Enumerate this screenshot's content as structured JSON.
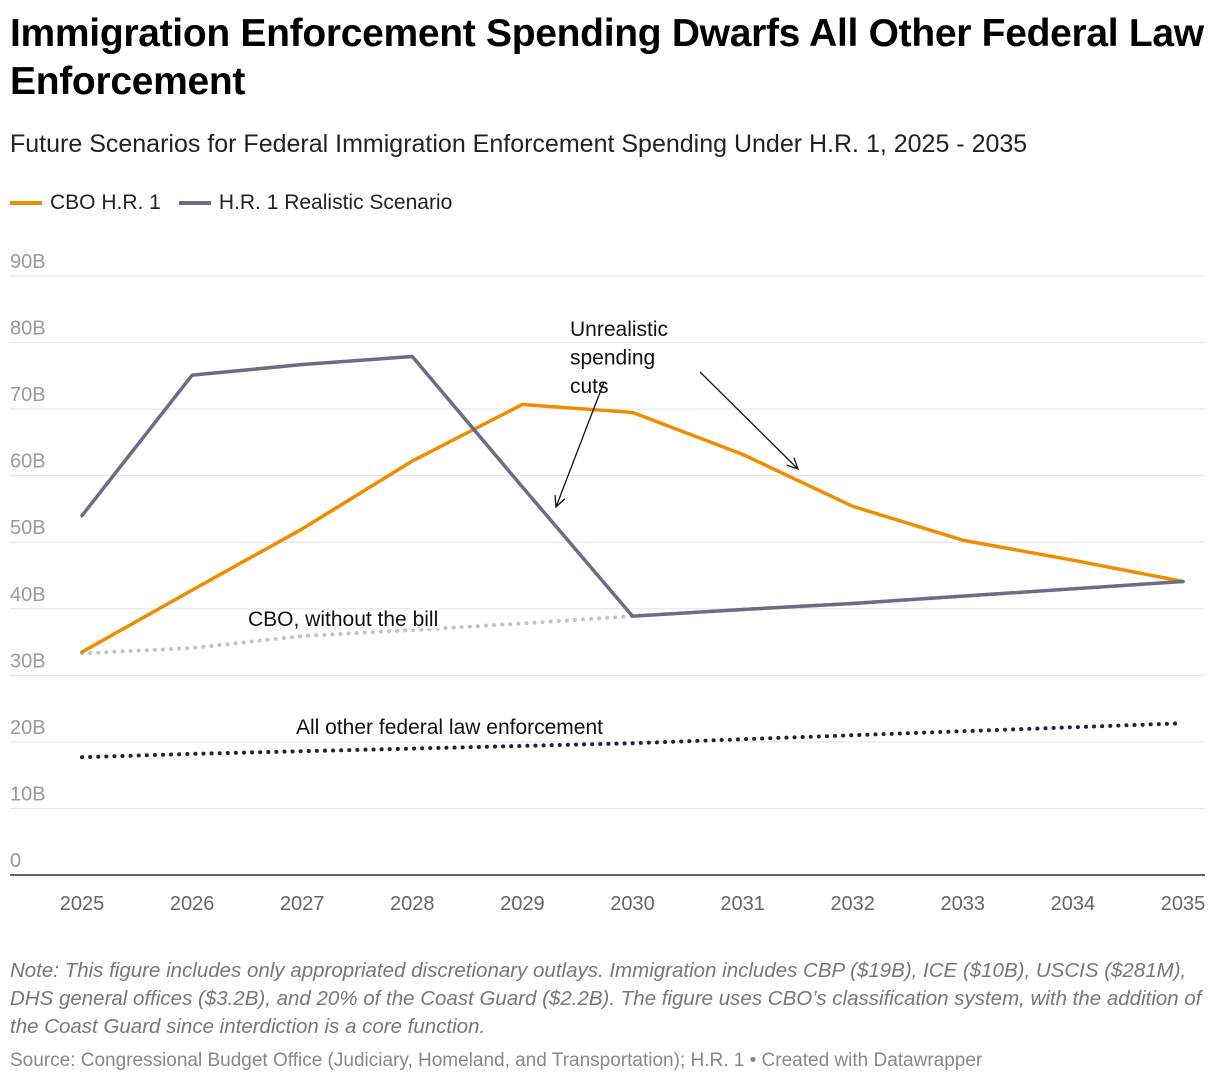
{
  "title": "Immigration Enforcement Spending Dwarfs All Other Federal Law Enforcement",
  "subtitle": "Future Scenarios for Federal Immigration Enforcement Spending Under H.R. 1, 2025 - 2035",
  "note": "Note: This figure includes only appropriated discretionary outlays. Immigration includes CBP ($19B), ICE ($10B), USCIS ($281M), DHS general offices ($3.2B), and 20% of the Coast Guard ($2.2B). The figure uses CBO’s classification system, with the addition of the Coast Guard since interdiction is a core function.",
  "source": "Source: Congressional Budget Office (Judiciary, Homeland, and Transportation); H.R. 1 • Created with Datawrapper",
  "chart_data": {
    "type": "line",
    "x": [
      2025,
      2026,
      2027,
      2028,
      2029,
      2030,
      2031,
      2032,
      2033,
      2034,
      2035
    ],
    "ylim": [
      0,
      90
    ],
    "yticks": [
      0,
      10,
      20,
      30,
      40,
      50,
      60,
      70,
      80,
      90
    ],
    "ytick_labels": [
      "0",
      "10B",
      "20B",
      "30B",
      "40B",
      "50B",
      "60B",
      "70B",
      "80B",
      "90B"
    ],
    "grid": true,
    "legend_position": "top-left",
    "series": [
      {
        "name": "CBO H.R. 1",
        "color": "#f08c00",
        "style": "solid",
        "in_legend": true,
        "values": [
          33.5,
          42.8,
          52.0,
          62.2,
          70.7,
          69.5,
          63.2,
          55.4,
          50.3,
          47.3,
          44.1
        ]
      },
      {
        "name": "H.R. 1 Realistic Scenario",
        "color": "#6f6a8a",
        "style": "solid",
        "in_legend": true,
        "values": [
          54.0,
          75.1,
          76.7,
          77.9,
          58.3,
          38.9,
          39.9,
          40.8,
          41.9,
          43.0,
          44.1
        ]
      },
      {
        "name": "CBO, without the bill",
        "color": "#c4c4c4",
        "style": "dotted",
        "in_legend": false,
        "values": [
          33.3,
          34.1,
          35.9,
          36.8,
          37.8,
          38.9,
          39.9,
          40.8,
          41.9,
          43.0,
          44.1
        ]
      },
      {
        "name": "All other federal law enforcement",
        "color": "#24213a",
        "style": "dotted",
        "in_legend": false,
        "values": [
          17.7,
          18.2,
          18.6,
          19.0,
          19.4,
          19.8,
          20.4,
          21.0,
          21.6,
          22.2,
          22.8
        ]
      }
    ],
    "annotations": {
      "cuts": "Unrealistic spending cuts",
      "cuts_lines": [
        "Unrealistic",
        "spending",
        "cuts"
      ]
    }
  }
}
